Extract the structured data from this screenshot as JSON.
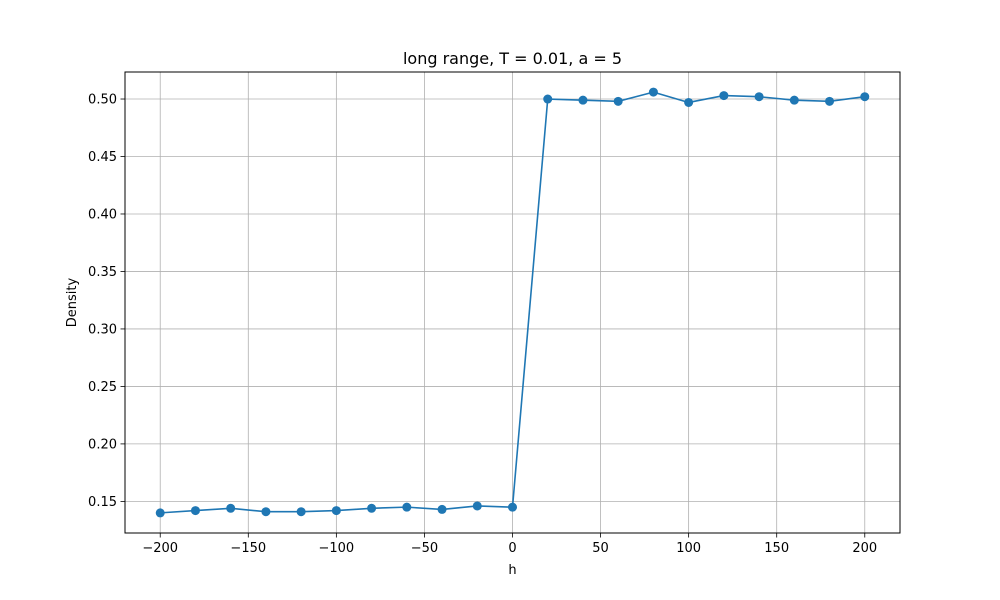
{
  "chart_data": {
    "type": "line",
    "title": "long range, T = 0.01, a = 5",
    "xlabel": "h",
    "ylabel": "Density",
    "xlim": [
      -220,
      220
    ],
    "ylim": [
      0.1225,
      0.5235
    ],
    "grid": true,
    "line_color": "#1f77b4",
    "marker": "circle",
    "x_ticks": [
      -200,
      -150,
      -100,
      -50,
      0,
      50,
      100,
      150,
      200
    ],
    "x_tick_labels": [
      "−200",
      "−150",
      "−100",
      "−50",
      "0",
      "50",
      "100",
      "150",
      "200"
    ],
    "y_ticks": [
      0.15,
      0.2,
      0.25,
      0.3,
      0.35,
      0.4,
      0.45,
      0.5
    ],
    "y_tick_labels": [
      "0.15",
      "0.20",
      "0.25",
      "0.30",
      "0.35",
      "0.40",
      "0.45",
      "0.50"
    ],
    "series": [
      {
        "x": [
          -200,
          -180,
          -160,
          -140,
          -120,
          -100,
          -80,
          -60,
          -40,
          -20,
          0,
          20,
          40,
          60,
          80,
          100,
          120,
          140,
          160,
          180,
          200
        ],
        "y": [
          0.14,
          0.142,
          0.144,
          0.141,
          0.141,
          0.142,
          0.144,
          0.145,
          0.143,
          0.146,
          0.145,
          0.5,
          0.499,
          0.498,
          0.506,
          0.497,
          0.503,
          0.502,
          0.499,
          0.498,
          0.502
        ]
      }
    ]
  }
}
